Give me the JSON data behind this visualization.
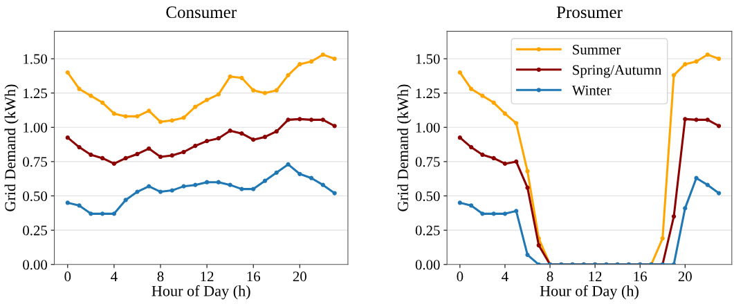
{
  "chart_data": [
    {
      "type": "line",
      "title": "Consumer",
      "xlabel": "Hour of Day (h)",
      "ylabel": "Grid Demand (kWh)",
      "x": [
        0,
        1,
        2,
        3,
        4,
        5,
        6,
        7,
        8,
        9,
        10,
        11,
        12,
        13,
        14,
        15,
        16,
        17,
        18,
        19,
        20,
        21,
        22,
        23
      ],
      "series": [
        {
          "color": "#ffa500",
          "values": [
            1.4,
            1.28,
            1.23,
            1.18,
            1.1,
            1.08,
            1.08,
            1.12,
            1.04,
            1.05,
            1.07,
            1.15,
            1.2,
            1.24,
            1.37,
            1.36,
            1.27,
            1.25,
            1.27,
            1.38,
            1.46,
            1.48,
            1.53,
            1.5
          ]
        },
        {
          "color": "#8b0000",
          "values": [
            0.925,
            0.855,
            0.8,
            0.775,
            0.735,
            0.775,
            0.805,
            0.845,
            0.785,
            0.795,
            0.82,
            0.865,
            0.9,
            0.92,
            0.975,
            0.955,
            0.91,
            0.93,
            0.97,
            1.055,
            1.06,
            1.055,
            1.055,
            1.01
          ]
        },
        {
          "color": "#1f77b4",
          "values": [
            0.45,
            0.43,
            0.37,
            0.37,
            0.37,
            0.47,
            0.53,
            0.57,
            0.53,
            0.54,
            0.57,
            0.58,
            0.6,
            0.6,
            0.58,
            0.55,
            0.55,
            0.61,
            0.67,
            0.73,
            0.66,
            0.63,
            0.58,
            0.52
          ]
        }
      ],
      "xlim": [
        -1.15,
        24.15
      ],
      "xticks": [
        0,
        4,
        8,
        12,
        16,
        20
      ],
      "ylim": [
        0,
        1.7
      ],
      "yticks": [
        {
          "value": 0,
          "label": "0.00"
        },
        {
          "value": 0.25,
          "label": "0.25"
        },
        {
          "value": 0.5,
          "label": "0.50"
        },
        {
          "value": 0.75,
          "label": "0.75"
        },
        {
          "value": 1,
          "label": "1.00"
        },
        {
          "value": 1.25,
          "label": "1.25"
        },
        {
          "value": 1.5,
          "label": "1.50"
        }
      ],
      "grid": "y",
      "marker": "circle",
      "line_style": "solid"
    },
    {
      "type": "line",
      "title": "Prosumer",
      "xlabel": "Hour of Day (h)",
      "ylabel": "Grid Demand (kWh)",
      "x": [
        0,
        1,
        2,
        3,
        4,
        5,
        6,
        7,
        8,
        9,
        10,
        11,
        12,
        13,
        14,
        15,
        16,
        17,
        18,
        19,
        20,
        21,
        22,
        23
      ],
      "series": [
        {
          "name": "Summer",
          "color": "#ffa500",
          "values": [
            1.4,
            1.28,
            1.23,
            1.18,
            1.1,
            1.03,
            0.68,
            0.19,
            0,
            0,
            0,
            0,
            0,
            0,
            0,
            0,
            0,
            0,
            0.19,
            1.38,
            1.46,
            1.48,
            1.53,
            1.5
          ]
        },
        {
          "name": "Spring/Autumn",
          "color": "#8b0000",
          "values": [
            0.925,
            0.855,
            0.8,
            0.775,
            0.735,
            0.75,
            0.56,
            0.14,
            0,
            0,
            0,
            0,
            0,
            0,
            0,
            0,
            0,
            0,
            0,
            0.35,
            1.06,
            1.055,
            1.055,
            1.01
          ]
        },
        {
          "name": "Winter",
          "color": "#1f77b4",
          "values": [
            0.45,
            0.43,
            0.37,
            0.37,
            0.37,
            0.39,
            0.07,
            0,
            0,
            0,
            0,
            0,
            0,
            0,
            0,
            0,
            0,
            0,
            0,
            0,
            0.41,
            0.63,
            0.58,
            0.52
          ]
        }
      ],
      "xlim": [
        -1.15,
        24.15
      ],
      "xticks": [
        0,
        4,
        8,
        12,
        16,
        20
      ],
      "ylim": [
        0,
        1.7
      ],
      "yticks": [
        {
          "value": 0,
          "label": "0.00"
        },
        {
          "value": 0.25,
          "label": "0.25"
        },
        {
          "value": 0.5,
          "label": "0.50"
        },
        {
          "value": 0.75,
          "label": "0.75"
        },
        {
          "value": 1,
          "label": "1.00"
        },
        {
          "value": 1.25,
          "label": "1.25"
        },
        {
          "value": 1.5,
          "label": "1.50"
        }
      ],
      "grid": "y",
      "marker": "circle",
      "line_style": "solid",
      "legend": "top"
    }
  ]
}
